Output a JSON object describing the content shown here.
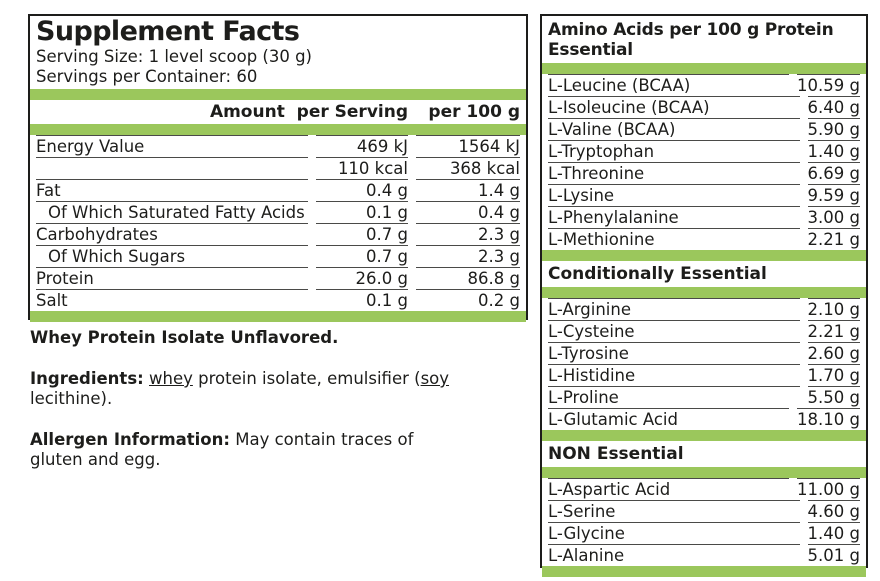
{
  "colors": {
    "accent_green": "#9bc75c",
    "text": "#1d1d1b",
    "rule_line": "#4a4a48"
  },
  "left_panel": {
    "title": "Supplement Facts",
    "serving_size": "Serving Size: 1 level scoop (30 g)",
    "servings_per_container": "Servings per Container: 60",
    "col1_header": "Amount  per Serving",
    "col2_header": "per 100 g",
    "rows": [
      {
        "label": "Energy Value",
        "per_serving": "469 kJ",
        "per_100g": "1564 kJ",
        "indent": false
      },
      {
        "label": "",
        "per_serving": "110 kcal",
        "per_100g": "368 kcal",
        "indent": false
      },
      {
        "label": "Fat",
        "per_serving": "0.4 g",
        "per_100g": "1.4 g",
        "indent": false
      },
      {
        "label": "Of Which Saturated Fatty Acids",
        "per_serving": "0.1 g",
        "per_100g": "0.4 g",
        "indent": true
      },
      {
        "label": "Carbohydrates",
        "per_serving": "0.7 g",
        "per_100g": "2.3 g",
        "indent": false
      },
      {
        "label": "Of Which Sugars",
        "per_serving": "0.7 g",
        "per_100g": "2.3 g",
        "indent": true
      },
      {
        "label": "Protein",
        "per_serving": "26.0 g",
        "per_100g": "86.8 g",
        "indent": false
      },
      {
        "label": "Salt",
        "per_serving": "0.1 g",
        "per_100g": "0.2 g",
        "indent": false
      }
    ]
  },
  "notes": {
    "product_name": "Whey Protein Isolate Unflavored.",
    "ingredients": {
      "label": "Ingredients:",
      "pre": " ",
      "underlined_word1": "whey",
      "middle": " protein isolate, emulsifier (",
      "underlined_word2": "soy",
      "line2": "lecithine)."
    },
    "allergen": {
      "label": "Allergen Information:",
      "line1": " May contain traces of",
      "line2": "gluten and egg."
    }
  },
  "right_panel": {
    "title_line1": "Amino Acids per 100 g Protein",
    "title_line2": "Essential",
    "essential": {
      "rows": [
        {
          "name": "L-Leucine (BCAA)",
          "value": "10.59 g"
        },
        {
          "name": "L-Isoleucine (BCAA)",
          "value": "6.40 g"
        },
        {
          "name": "L-Valine (BCAA)",
          "value": "5.90 g"
        },
        {
          "name": "L-Tryptophan",
          "value": "1.40 g"
        },
        {
          "name": "L-Threonine",
          "value": "6.69 g"
        },
        {
          "name": "L-Lysine",
          "value": "9.59 g"
        },
        {
          "name": "L-Phenylalanine",
          "value": "3.00 g"
        },
        {
          "name": "L-Methionine",
          "value": "2.21 g"
        }
      ]
    },
    "conditionally_essential": {
      "header": "Conditionally Essential",
      "rows": [
        {
          "name": "L-Arginine",
          "value": "2.10 g"
        },
        {
          "name": "L-Cysteine",
          "value": "2.21 g"
        },
        {
          "name": "L-Tyrosine",
          "value": "2.60 g"
        },
        {
          "name": "L-Histidine",
          "value": "1.70 g"
        },
        {
          "name": "L-Proline",
          "value": "5.50 g"
        },
        {
          "name": "L-Glutamic Acid",
          "value": "18.10 g"
        }
      ]
    },
    "non_essential": {
      "header": "NON Essential",
      "rows": [
        {
          "name": "L-Aspartic Acid",
          "value": "11.00 g"
        },
        {
          "name": "L-Serine",
          "value": "4.60 g"
        },
        {
          "name": "L-Glycine",
          "value": "1.40 g"
        },
        {
          "name": "L-Alanine",
          "value": "5.01 g"
        }
      ]
    }
  }
}
